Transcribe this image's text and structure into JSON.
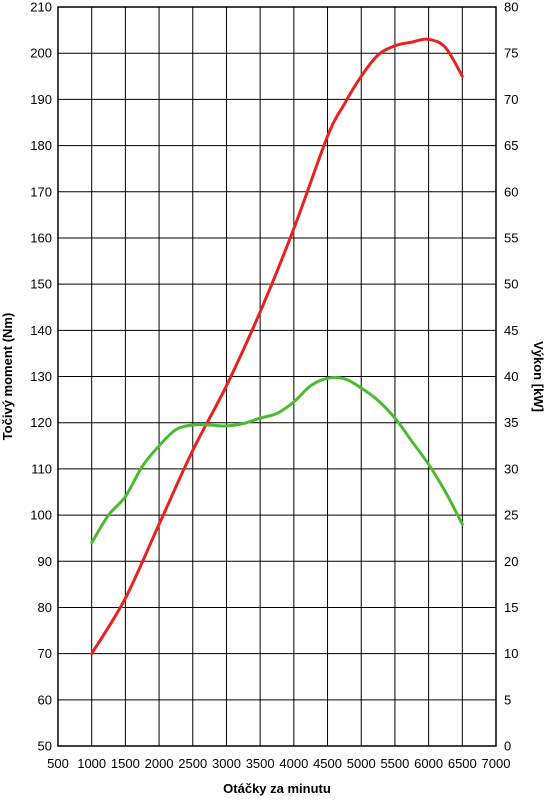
{
  "chart_data": {
    "type": "line",
    "xlabel": "Otáčky za minutu",
    "ylabel_left": "Točivý moment (Nm)",
    "ylabel_right": "Výkon [kW]",
    "xlim": [
      500,
      7000
    ],
    "x_ticks": [
      500,
      1000,
      1500,
      2000,
      2500,
      3000,
      3500,
      4000,
      4500,
      5000,
      5500,
      6000,
      6500,
      7000
    ],
    "ylim_left": [
      50,
      210
    ],
    "y_ticks_left": [
      50,
      60,
      70,
      80,
      90,
      100,
      110,
      120,
      130,
      140,
      150,
      160,
      170,
      180,
      190,
      200,
      210
    ],
    "ylim_right": [
      0,
      80
    ],
    "y_ticks_right": [
      0,
      5,
      10,
      15,
      20,
      25,
      30,
      35,
      40,
      45,
      50,
      55,
      60,
      65,
      70,
      75,
      80
    ],
    "grid": true,
    "series": [
      {
        "axis": "right",
        "color": "#e8231f",
        "x": [
          1000,
          1500,
          2000,
          2500,
          3000,
          3500,
          4000,
          4500,
          4750,
          5000,
          5250,
          5500,
          5750,
          6000,
          6250,
          6500
        ],
        "y": [
          10,
          16,
          24,
          32,
          39,
          47,
          56,
          66,
          69.5,
          72.5,
          74.8,
          75.8,
          76.2,
          76.5,
          75.6,
          72.5
        ]
      },
      {
        "axis": "left",
        "color": "#4cbb33",
        "x": [
          1000,
          1250,
          1500,
          1750,
          2000,
          2250,
          2500,
          2750,
          3000,
          3250,
          3500,
          3750,
          4000,
          4250,
          4500,
          4750,
          5000,
          5250,
          5500,
          5750,
          6000,
          6250,
          6500
        ],
        "y": [
          94,
          100,
          104,
          110.5,
          115,
          118.5,
          119.5,
          119.5,
          119.3,
          119.8,
          121,
          122,
          124.5,
          128,
          129.6,
          129.5,
          127.5,
          124.8,
          121,
          116,
          111,
          105,
          98
        ]
      }
    ]
  }
}
